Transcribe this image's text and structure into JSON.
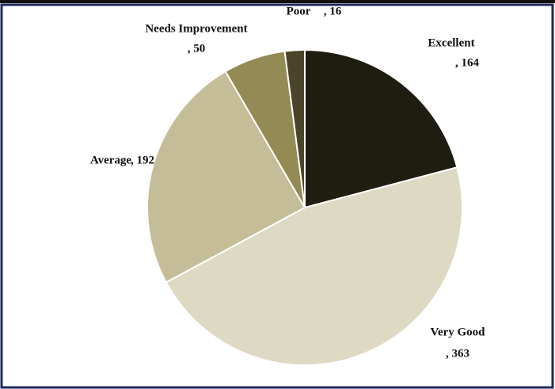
{
  "chart_data": {
    "type": "pie",
    "categories": [
      "Excellent",
      "Very Good",
      "Average",
      "Needs Improvement",
      "Poor"
    ],
    "values": [
      164,
      363,
      192,
      50,
      16
    ],
    "value_labels": [
      ", 164",
      ", 363",
      ", 192",
      ", 50",
      ", 16"
    ],
    "colors": [
      "#1f1c10",
      "#ddd9c3",
      "#c4bd97",
      "#948a54",
      "#4a452a"
    ]
  }
}
